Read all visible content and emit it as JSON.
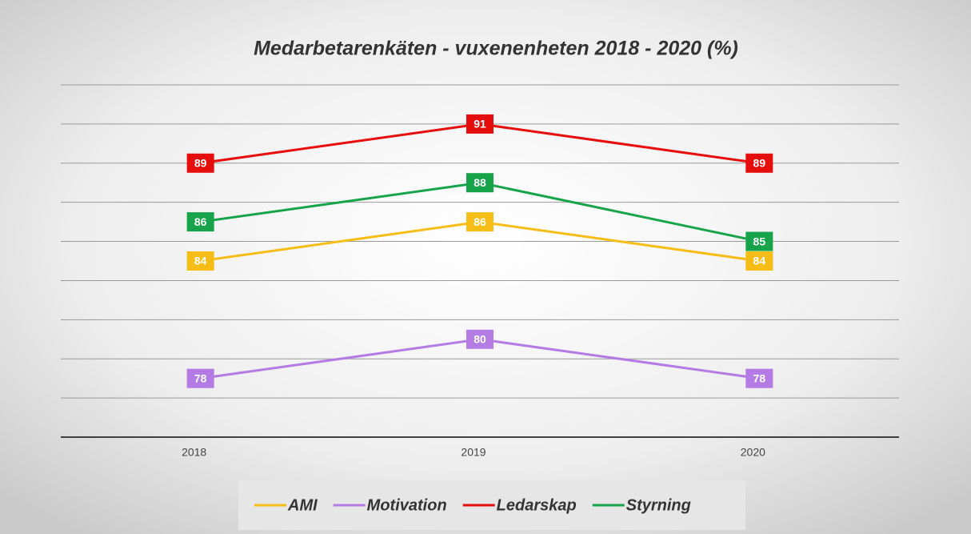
{
  "chart_data": {
    "type": "line",
    "title": "Medarbetarenkäten - vuxenenheten 2018 - 2020 (%)",
    "categories": [
      "2018",
      "2019",
      "2020"
    ],
    "series": [
      {
        "name": "AMI",
        "color": "#f6bd16",
        "values": [
          84,
          86,
          84
        ]
      },
      {
        "name": "Motivation",
        "color": "#b47be4",
        "values": [
          78,
          80,
          78
        ]
      },
      {
        "name": "Ledarskap",
        "color": "#e60d0d",
        "values": [
          89,
          91,
          89
        ]
      },
      {
        "name": "Styrning",
        "color": "#17a34a",
        "values": [
          86,
          88,
          85
        ]
      }
    ],
    "ylim": [
      75,
      93
    ],
    "yticks": [
      75,
      77,
      79,
      81,
      83,
      85,
      87,
      89,
      91,
      93
    ],
    "grid": true,
    "legend": "bottom"
  }
}
